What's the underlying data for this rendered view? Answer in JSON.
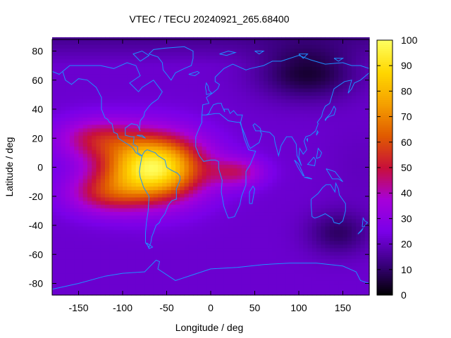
{
  "chart_data": {
    "type": "heatmap",
    "title": "VTEC / TECU 20240921_265.68400",
    "xlabel": "Longitude / deg",
    "ylabel": "Latitude / deg",
    "xlim": [
      -180,
      180
    ],
    "ylim": [
      -88,
      88
    ],
    "x_ticks": [
      -150,
      -100,
      -50,
      0,
      50,
      100,
      150
    ],
    "y_ticks": [
      -80,
      -60,
      -40,
      -20,
      0,
      20,
      40,
      60,
      80
    ],
    "colorbar": {
      "min": 0,
      "max": 100,
      "ticks": [
        0,
        10,
        20,
        30,
        40,
        50,
        60,
        70,
        80,
        90,
        100
      ],
      "palette": [
        "#000000",
        "#3b0080",
        "#7a00e8",
        "#a600d9",
        "#c8103a",
        "#e05a00",
        "#f5a000",
        "#ffd700",
        "#ffff60"
      ]
    },
    "background_level": 22,
    "peaks": [
      {
        "name": "equatorial-anomaly-americas",
        "lon": -65,
        "lat": 0,
        "value": 98
      },
      {
        "name": "equatorial-extension-atlantic-africa",
        "lon": 30,
        "lat": -3,
        "value": 60
      },
      {
        "name": "crest-north-west",
        "lon": -130,
        "lat": 20,
        "value": 55
      },
      {
        "name": "crest-south-west",
        "lon": -120,
        "lat": -18,
        "value": 55
      }
    ],
    "troughs": [
      {
        "name": "low-asia-north",
        "lon": 110,
        "lat": 65,
        "value": 5
      },
      {
        "name": "low-australia-south",
        "lon": 145,
        "lat": -45,
        "value": 10
      },
      {
        "name": "low-pacific-east",
        "lon": 170,
        "lat": 0,
        "value": 18
      }
    ],
    "overlay": "coastlines",
    "coastline_color": "#1e90ff"
  }
}
